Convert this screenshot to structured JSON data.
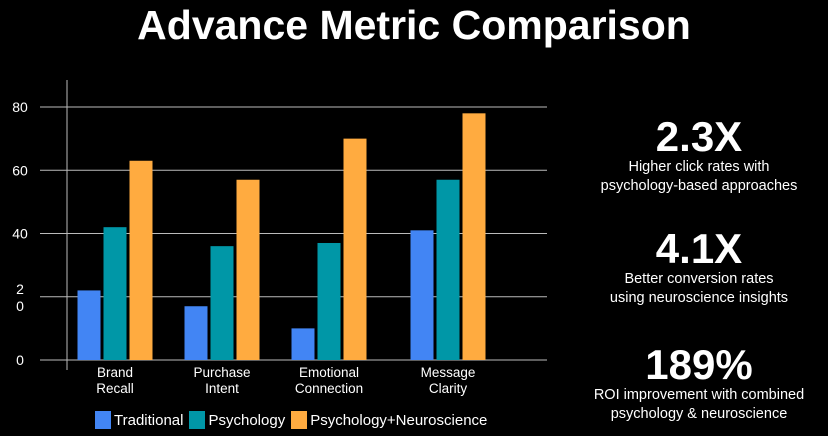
{
  "title": "Advance Metric Comparison",
  "chart_data": {
    "type": "bar",
    "title": "Advance Metric Comparison",
    "categories": [
      "Brand\nRecall",
      "Purchase\nIntent",
      "Emotional\nConnection",
      "Message\nClarity"
    ],
    "series": [
      {
        "name": "Traditional",
        "color": "#4285f4",
        "values": [
          22,
          17,
          10,
          41
        ]
      },
      {
        "name": "Psychology",
        "color": "#0097a7",
        "values": [
          42,
          36,
          37,
          57
        ]
      },
      {
        "name": "Psychology+Neuroscience",
        "color": "#ffab40",
        "values": [
          63,
          57,
          70,
          78
        ]
      }
    ],
    "yticks": [
      "0",
      "2\n0",
      "40",
      "60",
      "80"
    ],
    "ytick_values": [
      0,
      20,
      40,
      60,
      80
    ],
    "ylim": [
      0,
      80
    ],
    "grid": true,
    "legend": "bottom",
    "xlabel": "",
    "ylabel": ""
  },
  "stats": [
    {
      "value": "2.3X",
      "desc": [
        "Higher click rates with",
        "psychology-based approaches"
      ]
    },
    {
      "value": "4.1X",
      "desc": [
        "Better conversion rates",
        "using neuroscience insights"
      ]
    },
    {
      "value": "189%",
      "desc": [
        "ROI improvement with combined",
        "psychology & neuroscience"
      ]
    }
  ]
}
